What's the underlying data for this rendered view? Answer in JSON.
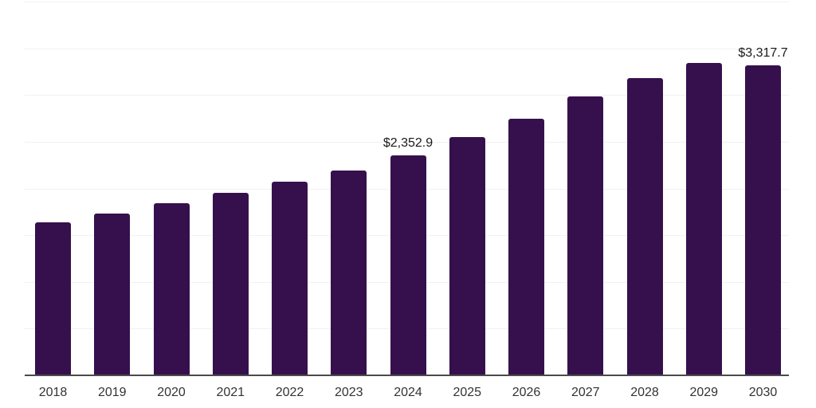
{
  "chart_data": {
    "type": "bar",
    "title": "",
    "xlabel": "",
    "ylabel": "",
    "categories": [
      "2018",
      "2019",
      "2020",
      "2021",
      "2022",
      "2023",
      "2024",
      "2025",
      "2026",
      "2027",
      "2028",
      "2029",
      "2030"
    ],
    "values": [
      1640,
      1730,
      1845,
      1950,
      2075,
      2190,
      2352.9,
      2550,
      2750,
      2985,
      3180,
      3345,
      3317.7
    ],
    "data_labels": [
      "",
      "",
      "",
      "",
      "",
      "",
      "$2,352.9",
      "",
      "",
      "",
      "",
      "",
      "$3,317.7"
    ],
    "ylim": [
      0,
      4000
    ],
    "gridline_step": 500,
    "grid": true,
    "legend": "none",
    "y_axis_labels_visible": false,
    "colors": {
      "bar": "#36104D",
      "gridline": "#F1F1F1",
      "axis": "#4A4A4A",
      "data_label": "#1A1A1A",
      "tick_label": "#333333",
      "background": "#FFFFFF"
    }
  }
}
